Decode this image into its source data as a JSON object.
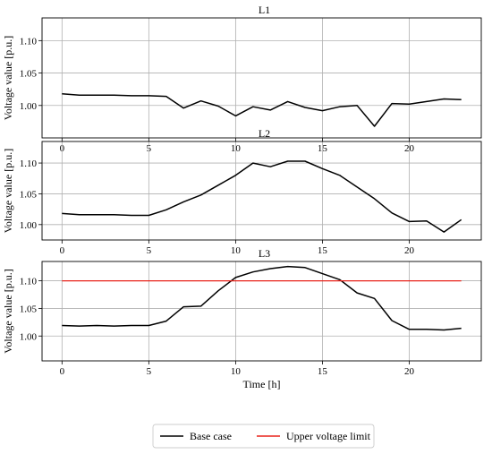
{
  "chart_data": [
    {
      "type": "line",
      "title": "L1",
      "xlabel": "",
      "ylabel": "Voltage value [p.u.]",
      "xlim": [
        -1.15,
        24.15
      ],
      "ylim": [
        0.95,
        1.135
      ],
      "xticks": [
        0,
        5,
        10,
        15,
        20
      ],
      "yticks": [
        1.0,
        1.05,
        1.1
      ],
      "ytick_labels": [
        "1.00",
        "1.05",
        "1.10"
      ],
      "grid": true,
      "series": [
        {
          "name": "Base case",
          "color": "#000000",
          "x": [
            0,
            1,
            2,
            3,
            4,
            5,
            6,
            7,
            8,
            9,
            10,
            11,
            12,
            13,
            14,
            15,
            16,
            17,
            18,
            19,
            20,
            21,
            22,
            23
          ],
          "y": [
            1.018,
            1.016,
            1.016,
            1.016,
            1.015,
            1.015,
            1.014,
            0.996,
            1.007,
            0.999,
            0.984,
            0.998,
            0.993,
            1.006,
            0.997,
            0.992,
            0.998,
            1.0,
            0.968,
            1.003,
            1.002,
            1.006,
            1.01,
            1.009
          ]
        }
      ]
    },
    {
      "type": "line",
      "title": "L2",
      "xlabel": "",
      "ylabel": "Voltage value [p.u.]",
      "xlim": [
        -1.15,
        24.15
      ],
      "ylim": [
        0.975,
        1.135
      ],
      "xticks": [
        0,
        5,
        10,
        15,
        20
      ],
      "yticks": [
        1.0,
        1.05,
        1.1
      ],
      "ytick_labels": [
        "1.00",
        "1.05",
        "1.10"
      ],
      "grid": true,
      "series": [
        {
          "name": "Base case",
          "color": "#000000",
          "x": [
            0,
            1,
            2,
            3,
            4,
            5,
            6,
            7,
            8,
            9,
            10,
            11,
            12,
            13,
            14,
            15,
            16,
            17,
            18,
            19,
            20,
            21,
            22,
            23
          ],
          "y": [
            1.018,
            1.016,
            1.016,
            1.016,
            1.015,
            1.015,
            1.024,
            1.037,
            1.048,
            1.064,
            1.08,
            1.1,
            1.094,
            1.103,
            1.103,
            1.091,
            1.08,
            1.061,
            1.042,
            1.019,
            1.005,
            1.006,
            0.988,
            1.008
          ]
        }
      ]
    },
    {
      "type": "line",
      "title": "L3",
      "xlabel": "Time [h]",
      "ylabel": "Voltage value [p.u.]",
      "xlim": [
        -1.15,
        24.15
      ],
      "ylim": [
        0.955,
        1.135
      ],
      "xticks": [
        0,
        5,
        10,
        15,
        20
      ],
      "yticks": [
        1.0,
        1.05,
        1.1
      ],
      "ytick_labels": [
        "1.00",
        "1.05",
        "1.10"
      ],
      "grid": true,
      "series": [
        {
          "name": "Base case",
          "color": "#000000",
          "x": [
            0,
            1,
            2,
            3,
            4,
            5,
            6,
            7,
            8,
            9,
            10,
            11,
            12,
            13,
            14,
            15,
            16,
            17,
            18,
            19,
            20,
            21,
            22,
            23
          ],
          "y": [
            1.019,
            1.018,
            1.019,
            1.018,
            1.019,
            1.019,
            1.027,
            1.053,
            1.054,
            1.082,
            1.106,
            1.116,
            1.122,
            1.126,
            1.124,
            1.113,
            1.102,
            1.078,
            1.068,
            1.028,
            1.012,
            1.012,
            1.011,
            1.014
          ]
        },
        {
          "name": "Upper voltage limit",
          "color": "#e8231b",
          "x": [
            0,
            23
          ],
          "y": [
            1.1,
            1.1
          ]
        }
      ]
    }
  ],
  "legend": {
    "placement": "bottom-center",
    "entries": [
      {
        "label": "Base case",
        "color": "#000000"
      },
      {
        "label": "Upper voltage limit",
        "color": "#e8231b"
      }
    ]
  }
}
